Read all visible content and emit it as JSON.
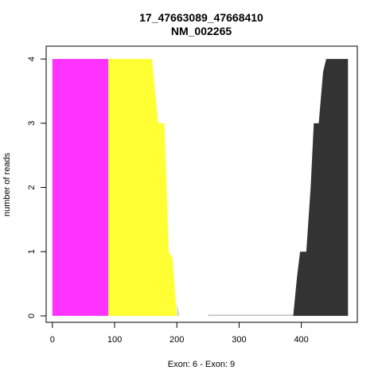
{
  "chart_data": {
    "type": "area",
    "title": "17_47663089_47668410",
    "subtitle": "NM_002265",
    "xlabel": "Exon: 6 - Exon: 9",
    "ylabel": "number of reads",
    "xlim": [
      -10,
      490
    ],
    "ylim": [
      -0.1,
      4.2
    ],
    "xticks": [
      0,
      100,
      200,
      300,
      400
    ],
    "yticks": [
      0,
      1,
      2,
      3,
      4
    ],
    "grid": false,
    "series": [
      {
        "color": "#ff33ff",
        "points": [
          [
            0,
            0
          ],
          [
            0,
            4
          ],
          [
            90,
            4
          ],
          [
            90,
            0
          ]
        ]
      },
      {
        "color": "#ffff33",
        "points": [
          [
            90,
            0
          ],
          [
            90,
            4
          ],
          [
            160,
            4
          ],
          [
            170,
            3
          ],
          [
            180,
            3
          ],
          [
            187,
            1
          ],
          [
            193,
            0.9
          ],
          [
            200,
            0
          ]
        ]
      },
      {
        "color": "#d9d9d9",
        "points": [
          [
            200,
            0
          ],
          [
            200,
            0.2
          ],
          [
            205,
            0
          ]
        ]
      },
      {
        "color": "#bfbfbf",
        "points": [
          [
            250,
            0
          ],
          [
            250,
            0.02
          ],
          [
            387,
            0.02
          ],
          [
            387,
            0
          ]
        ]
      },
      {
        "color": "#333333",
        "points": [
          [
            387,
            0
          ],
          [
            393,
            0.6
          ],
          [
            398,
            1
          ],
          [
            408,
            1
          ],
          [
            415,
            2
          ],
          [
            420,
            3
          ],
          [
            428,
            3
          ],
          [
            435,
            3.8
          ],
          [
            440,
            4
          ],
          [
            475,
            4
          ],
          [
            475,
            0
          ]
        ]
      }
    ]
  }
}
